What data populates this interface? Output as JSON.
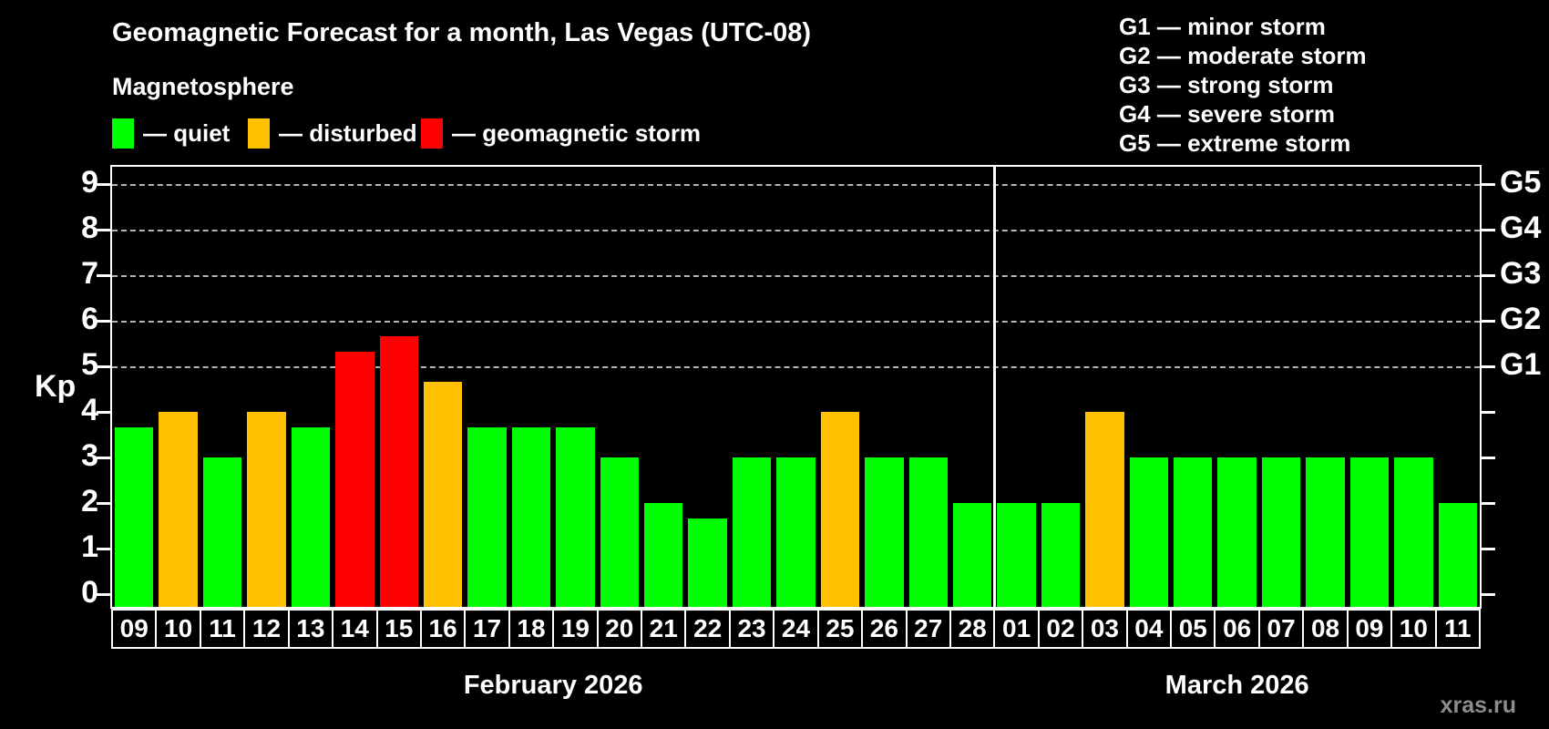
{
  "header": {
    "title": "Geomagnetic Forecast for a month, Las Vegas (UTC-08)",
    "subtitle": "Magnetosphere"
  },
  "legend": {
    "items": [
      {
        "name": "quiet",
        "label": "— quiet",
        "color": "#00ff00"
      },
      {
        "name": "disturbed",
        "label": "— disturbed",
        "color": "#ffc000"
      },
      {
        "name": "storm",
        "label": "— geomagnetic storm",
        "color": "#ff0000"
      }
    ]
  },
  "g_legend": [
    "G1 — minor storm",
    "G2 — moderate storm",
    "G3 — strong storm",
    "G4 — severe storm",
    "G5 — extreme storm"
  ],
  "axis": {
    "kp_label": "Kp",
    "yticks": [
      0,
      1,
      2,
      3,
      4,
      5,
      6,
      7,
      8,
      9
    ]
  },
  "watermark": "xras.ru",
  "chart_data": {
    "type": "bar",
    "title": "Geomagnetic Forecast for a month, Las Vegas (UTC-08)",
    "ylabel": "Kp",
    "ylim": [
      0,
      9.4
    ],
    "grid_levels": [
      5,
      6,
      7,
      8,
      9
    ],
    "grid_style": "dashed",
    "legend_position": "top-left",
    "categories": [
      "09",
      "10",
      "11",
      "12",
      "13",
      "14",
      "15",
      "16",
      "17",
      "18",
      "19",
      "20",
      "21",
      "22",
      "23",
      "24",
      "25",
      "26",
      "27",
      "28",
      "01",
      "02",
      "03",
      "04",
      "05",
      "06",
      "07",
      "08",
      "09",
      "10",
      "11"
    ],
    "values": [
      3.67,
      4,
      3,
      4,
      3.67,
      5.33,
      5.67,
      4.67,
      3.67,
      3.67,
      3.67,
      3,
      2,
      1.67,
      3,
      3,
      4,
      3,
      3,
      2,
      2,
      2,
      4,
      3,
      3,
      3,
      3,
      3,
      3,
      3,
      2
    ],
    "statuses": [
      "quiet",
      "disturbed",
      "quiet",
      "disturbed",
      "quiet",
      "storm",
      "storm",
      "disturbed",
      "quiet",
      "quiet",
      "quiet",
      "quiet",
      "quiet",
      "quiet",
      "quiet",
      "quiet",
      "disturbed",
      "quiet",
      "quiet",
      "quiet",
      "quiet",
      "quiet",
      "disturbed",
      "quiet",
      "quiet",
      "quiet",
      "quiet",
      "quiet",
      "quiet",
      "quiet",
      "quiet"
    ],
    "status_colors": {
      "quiet": "#00ff00",
      "disturbed": "#ffc000",
      "storm": "#ff0000"
    },
    "months": [
      {
        "label": "February 2026",
        "count": 20
      },
      {
        "label": "March 2026",
        "count": 11
      }
    ],
    "right_labels": [
      {
        "text": "G1",
        "kp": 5
      },
      {
        "text": "G2",
        "kp": 6
      },
      {
        "text": "G3",
        "kp": 7
      },
      {
        "text": "G4",
        "kp": 8
      },
      {
        "text": "G5",
        "kp": 9
      }
    ]
  }
}
